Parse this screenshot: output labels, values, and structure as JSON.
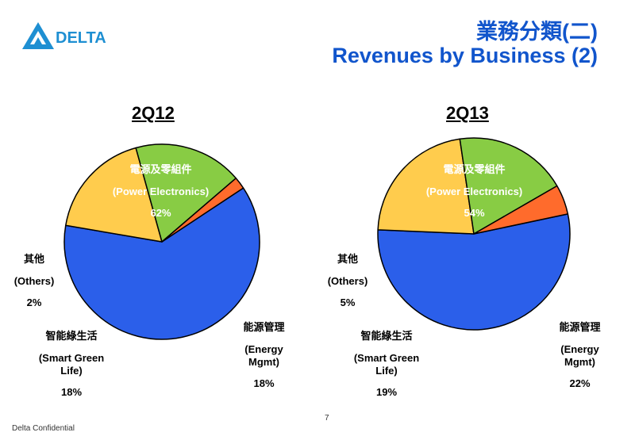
{
  "header": {
    "brand": "DELTA",
    "title_zh": "業務分類(二)",
    "title_en": "Revenues by Business (2)"
  },
  "colors": {
    "brand_blue": "#1E8FD2",
    "title_blue": "#1155CC",
    "power": "#2B5FEA",
    "energy": "#FFCC4D",
    "smart": "#88CC44",
    "others": "#FF6B2C"
  },
  "chart_data": [
    {
      "type": "pie",
      "title": "2Q12",
      "slices": [
        {
          "zh": "電源及零組件",
          "en": "(Power Electronics)",
          "pct_label": "62%",
          "value": 62
        },
        {
          "zh": "能源管理",
          "en": "(Energy Mgmt)",
          "pct_label": "18%",
          "value": 18
        },
        {
          "zh": "智能綠生活",
          "en": "(Smart Green Life)",
          "pct_label": "18%",
          "value": 18
        },
        {
          "zh": "其他",
          "en": "(Others)",
          "pct_label": "2%",
          "value": 2
        }
      ]
    },
    {
      "type": "pie",
      "title": "2Q13",
      "slices": [
        {
          "zh": "電源及零組件",
          "en": "(Power Electronics)",
          "pct_label": "54%",
          "value": 54
        },
        {
          "zh": "能源管理",
          "en": "(Energy Mgmt)",
          "pct_label": "22%",
          "value": 22
        },
        {
          "zh": "智能綠生活",
          "en": "(Smart Green Life)",
          "pct_label": "19%",
          "value": 19
        },
        {
          "zh": "其他",
          "en": "(Others)",
          "pct_label": "5%",
          "value": 5
        }
      ]
    }
  ],
  "footer": {
    "confidential": "Delta Confidential",
    "page": "7"
  }
}
